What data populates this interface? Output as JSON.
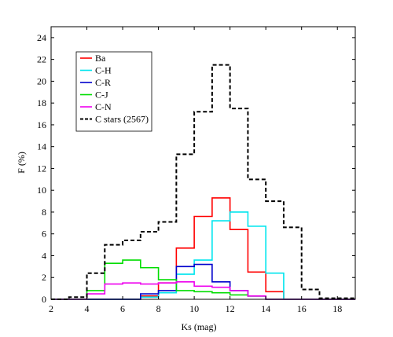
{
  "chart_data": {
    "type": "line",
    "step": true,
    "xlabel": "Ks (mag)",
    "ylabel": "F (%)",
    "xlim": [
      2,
      19
    ],
    "ylim": [
      0,
      25
    ],
    "xticks": [
      "2",
      "4",
      "6",
      "8",
      "10",
      "12",
      "14",
      "16",
      "18"
    ],
    "yticks": [
      "0",
      "2",
      "4",
      "6",
      "8",
      "10",
      "12",
      "14",
      "16",
      "18",
      "20",
      "22",
      "24"
    ],
    "legend_position": "top-left",
    "bin_edges": [
      2,
      3,
      4,
      5,
      6,
      7,
      8,
      9,
      10,
      11,
      12,
      13,
      14,
      15,
      16,
      17,
      18,
      19
    ],
    "series": [
      {
        "name": "Ba",
        "color": "#ff0000",
        "dash": false,
        "values": [
          0,
          0,
          0,
          0,
          0,
          0.3,
          1.5,
          4.7,
          7.6,
          9.3,
          6.4,
          2.5,
          0.7,
          0,
          0,
          0,
          0
        ]
      },
      {
        "name": "C-H",
        "color": "#00e5ee",
        "dash": false,
        "values": [
          0,
          0,
          0,
          0,
          0,
          0.2,
          0.6,
          2.3,
          3.6,
          7.2,
          8.0,
          6.7,
          2.4,
          0,
          0,
          0,
          0
        ]
      },
      {
        "name": "C-R",
        "color": "#0000cc",
        "dash": false,
        "values": [
          0,
          0,
          0,
          0,
          0,
          0.5,
          0.8,
          3.0,
          3.2,
          1.6,
          0.8,
          0.3,
          0,
          0,
          0,
          0,
          0
        ]
      },
      {
        "name": "C-J",
        "color": "#00dd00",
        "dash": false,
        "values": [
          0,
          0,
          0.8,
          3.3,
          3.6,
          2.9,
          1.8,
          0.8,
          0.7,
          0.6,
          0.4,
          0.3,
          0,
          0,
          0,
          0,
          0
        ]
      },
      {
        "name": "C-N",
        "color": "#ee00ee",
        "dash": false,
        "values": [
          0,
          0,
          0.5,
          1.4,
          1.5,
          1.4,
          1.5,
          1.6,
          1.2,
          1.1,
          0.8,
          0.3,
          0,
          0,
          0,
          0,
          0
        ]
      },
      {
        "name": "C stars (2567)",
        "color": "#000000",
        "dash": true,
        "values": [
          0,
          0.2,
          2.4,
          5.0,
          5.4,
          6.2,
          7.1,
          13.3,
          17.2,
          21.5,
          17.5,
          11.0,
          9.0,
          6.6,
          0.9,
          0.1,
          0.1
        ]
      }
    ]
  }
}
